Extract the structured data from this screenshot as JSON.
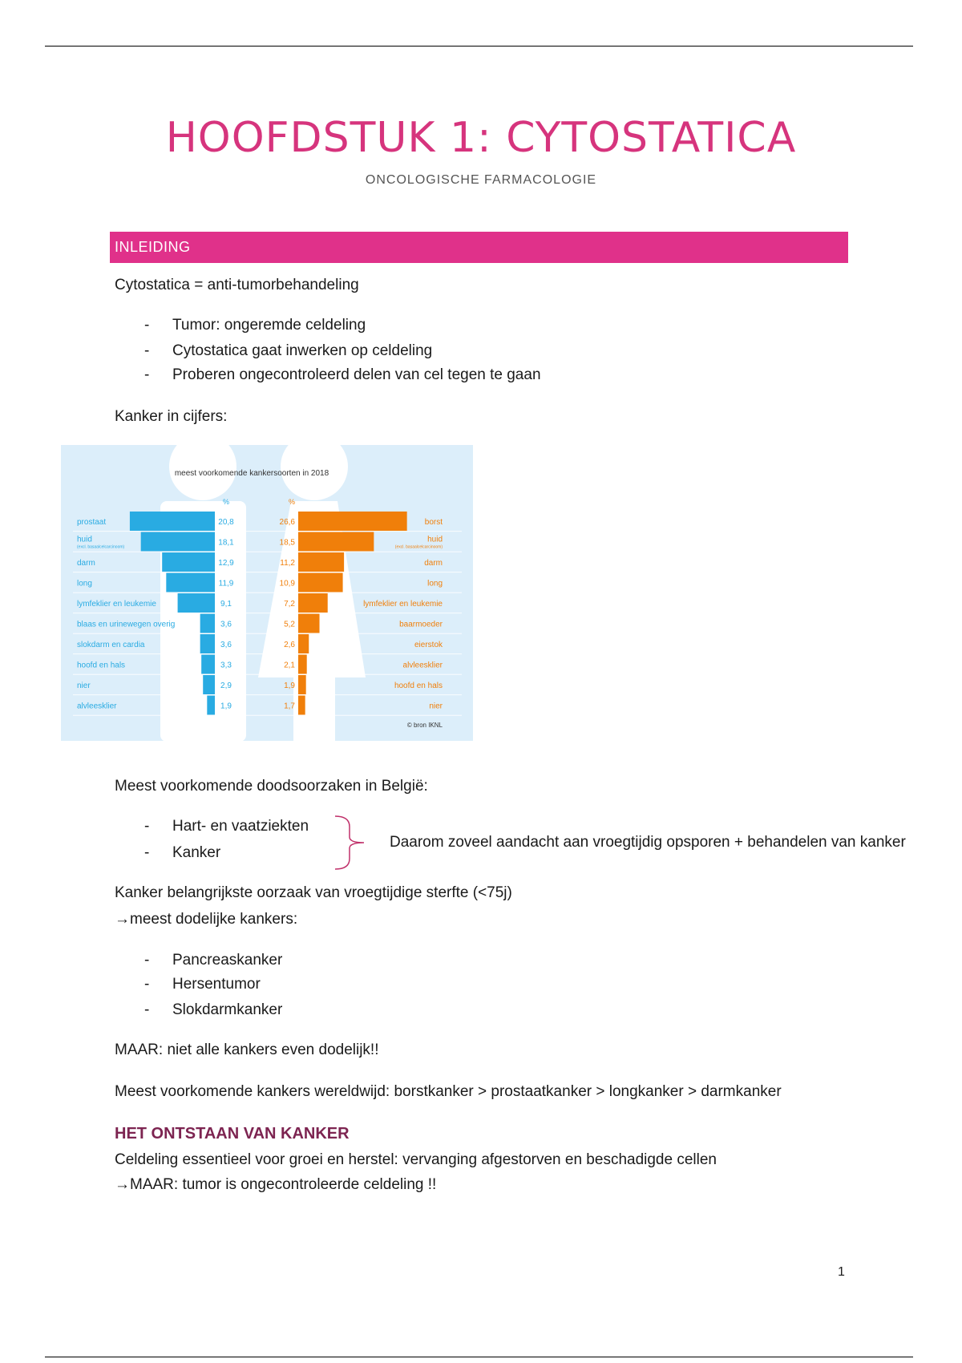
{
  "title": "HOOFDSTUK 1: CYTOSTATICA",
  "subtitle": "ONCOLOGISCHE FARMACOLOGIE",
  "section": "INLEIDING",
  "intro": "Cytostatica = anti-tumorbehandeling",
  "bullets1": [
    "Tumor: ongeremde celdeling",
    "Cytostatica gaat inwerken op celdeling",
    "Proberen ongecontroleerd delen van cel tegen te gaan"
  ],
  "figure_caption": "Kanker in cijfers:",
  "causes_intro": "Meest voorkomende doodsoorzaken in België:",
  "bullets2": [
    "Hart- en vaatziekten",
    "Kanker"
  ],
  "brace_note": "Daarom zoveel aandacht aan vroegtijdig opsporen + behandelen van kanker",
  "line_a": "Kanker belangrijkste oorzaak van vroegtijdige sterfte (<75j)",
  "line_b": "→meest dodelijke kankers:",
  "bullets3": [
    "Pancreaskanker",
    "Hersentumor",
    "Slokdarmkanker"
  ],
  "maar": "MAAR: niet alle kankers even dodelijk!!",
  "worldwide": "Meest voorkomende kankers wereldwijd: borstkanker > prostaatkanker > longkanker > darmkanker",
  "heading2": "HET ONTSTAAN VAN KANKER",
  "p1": "Celdeling essentieel voor groei en herstel: vervanging afgestorven en beschadigde cellen",
  "p2": "→MAAR: tumor is ongecontroleerde celdeling !!",
  "page_number": "1",
  "bullet_char": "-",
  "chart_data": {
    "type": "bar",
    "title": "meest voorkomende kankersoorten in 2018",
    "unit": "%",
    "credit": "© bron IKNL",
    "colors": {
      "men": "#29abe2",
      "women": "#f07f0a",
      "background": "#dceefa"
    },
    "men": {
      "categories": [
        "prostaat",
        "huid",
        "darm",
        "long",
        "lymfeklier en leukemie",
        "blaas en urinewegen overig",
        "slokdarm en cardia",
        "hoofd en hals",
        "nier",
        "alvleesklier"
      ],
      "sublabels": {
        "huid": "(excl. basaalcelcarcinoom)"
      },
      "values": [
        20.8,
        18.1,
        12.9,
        11.9,
        9.1,
        3.6,
        3.6,
        3.3,
        2.9,
        1.9
      ]
    },
    "women": {
      "categories": [
        "borst",
        "huid",
        "darm",
        "long",
        "lymfeklier en leukemie",
        "baarmoeder",
        "eierstok",
        "alvleesklier",
        "hoofd en hals",
        "nier"
      ],
      "sublabels": {
        "huid": "(excl. basaalcelcarcinoom)"
      },
      "values": [
        26.6,
        18.5,
        11.2,
        10.9,
        7.2,
        5.2,
        2.6,
        2.1,
        1.9,
        1.7
      ]
    }
  }
}
